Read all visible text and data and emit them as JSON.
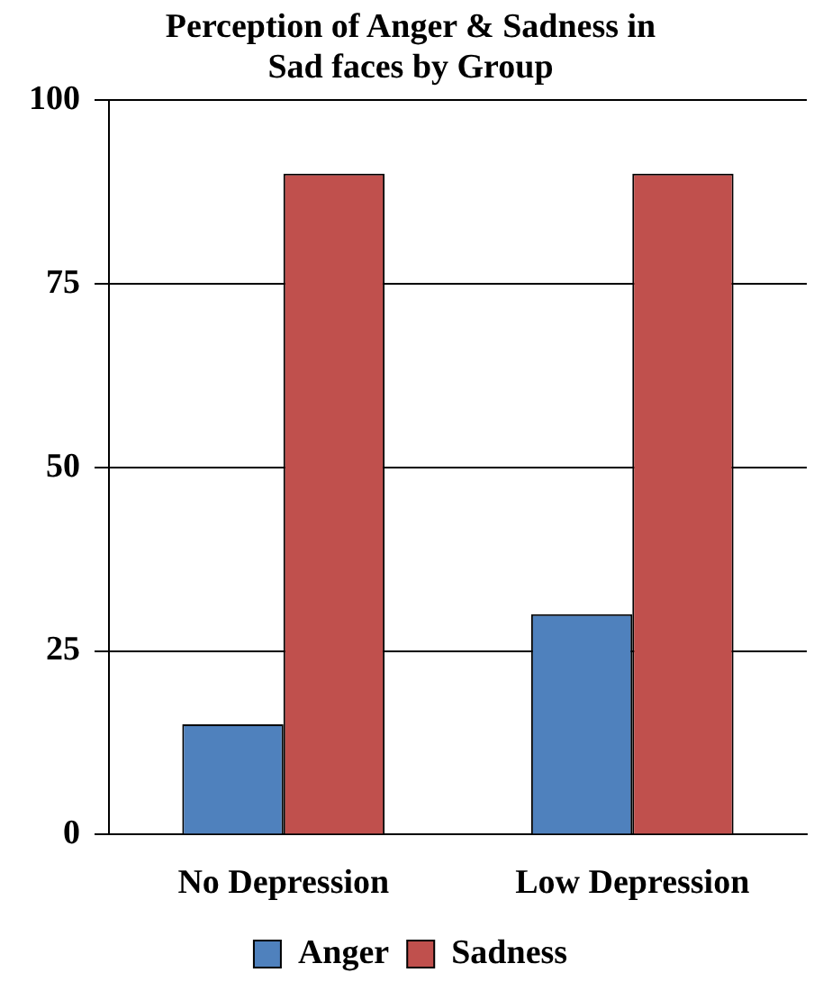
{
  "chart_data": {
    "type": "bar",
    "title": [
      "Perception of Anger & Sadness in",
      "Sad faces by Group"
    ],
    "categories": [
      "No Depression",
      "Low Depression"
    ],
    "series": [
      {
        "name": "Anger",
        "color": "#4f81bd",
        "values": [
          15,
          30
        ]
      },
      {
        "name": "Sadness",
        "color": "#c0504d",
        "values": [
          90,
          90
        ]
      }
    ],
    "ylim": [
      0,
      100
    ],
    "yticks": [
      0,
      25,
      50,
      75,
      100
    ],
    "grid": "y",
    "legend": "bottom"
  }
}
